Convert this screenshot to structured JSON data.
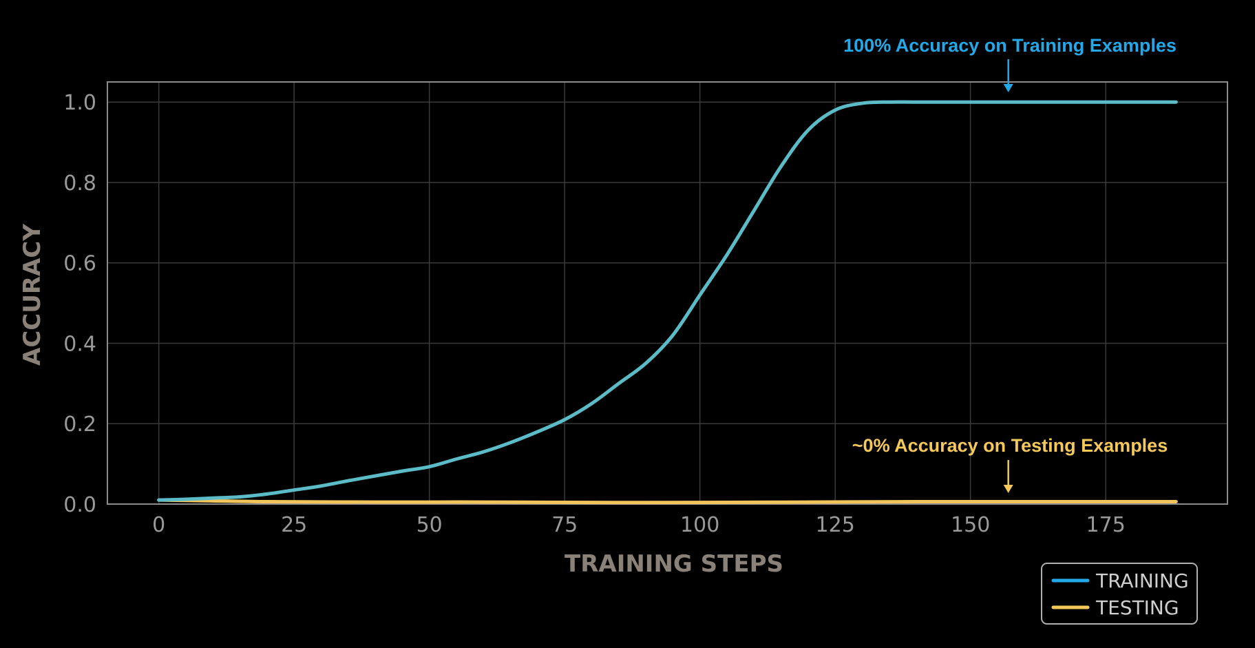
{
  "colors": {
    "background": "#000000",
    "training": "#5bbcc8",
    "testing": "#f2c45c",
    "annotation_training": "#23a8e8",
    "annotation_testing": "#f5c85a",
    "grid": "#3a3a3a",
    "frame": "#8c8c8c",
    "legend_training": "#23a8e8",
    "legend_testing": "#f5c85a"
  },
  "chart_data": {
    "type": "line",
    "xlabel": "TRAINING STEPS",
    "ylabel": "ACCURACY",
    "xlim": [
      -9.5,
      197.5
    ],
    "ylim": [
      0,
      1.05
    ],
    "xticks": [
      0,
      25,
      50,
      75,
      100,
      125,
      150,
      175
    ],
    "yticks": [
      0.0,
      0.2,
      0.4,
      0.6,
      0.8,
      1.0
    ],
    "xtick_labels": [
      "0",
      "25",
      "50",
      "75",
      "100",
      "125",
      "150",
      "175"
    ],
    "ytick_labels": [
      "0.0",
      "0.2",
      "0.4",
      "0.6",
      "0.8",
      "1.0"
    ],
    "grid": true,
    "legend_position": "bottom-right",
    "series": [
      {
        "name": "TRAINING",
        "x": [
          0,
          5,
          10,
          15,
          20,
          25,
          30,
          35,
          40,
          45,
          50,
          55,
          60,
          65,
          70,
          75,
          80,
          85,
          90,
          95,
          100,
          105,
          110,
          115,
          120,
          125,
          130,
          135,
          140,
          150,
          160,
          170,
          188
        ],
        "y": [
          0.01,
          0.012,
          0.015,
          0.018,
          0.025,
          0.035,
          0.045,
          0.058,
          0.07,
          0.082,
          0.093,
          0.112,
          0.13,
          0.153,
          0.18,
          0.21,
          0.25,
          0.3,
          0.35,
          0.42,
          0.52,
          0.62,
          0.73,
          0.84,
          0.93,
          0.98,
          0.997,
          1.0,
          1.0,
          1.0,
          1.0,
          1.0,
          1.0
        ]
      },
      {
        "name": "TESTING",
        "x": [
          0,
          10,
          20,
          40,
          60,
          80,
          100,
          120,
          140,
          160,
          188
        ],
        "y": [
          0.01,
          0.008,
          0.006,
          0.005,
          0.005,
          0.004,
          0.004,
          0.005,
          0.006,
          0.006,
          0.006
        ]
      }
    ],
    "annotations": [
      {
        "text": "100% Accuracy on Training Examples",
        "series": "TRAINING",
        "x": 157,
        "y": 1.0
      },
      {
        "text": "~0% Accuracy on Testing Examples",
        "series": "TESTING",
        "x": 157,
        "y": 0.006
      }
    ]
  }
}
